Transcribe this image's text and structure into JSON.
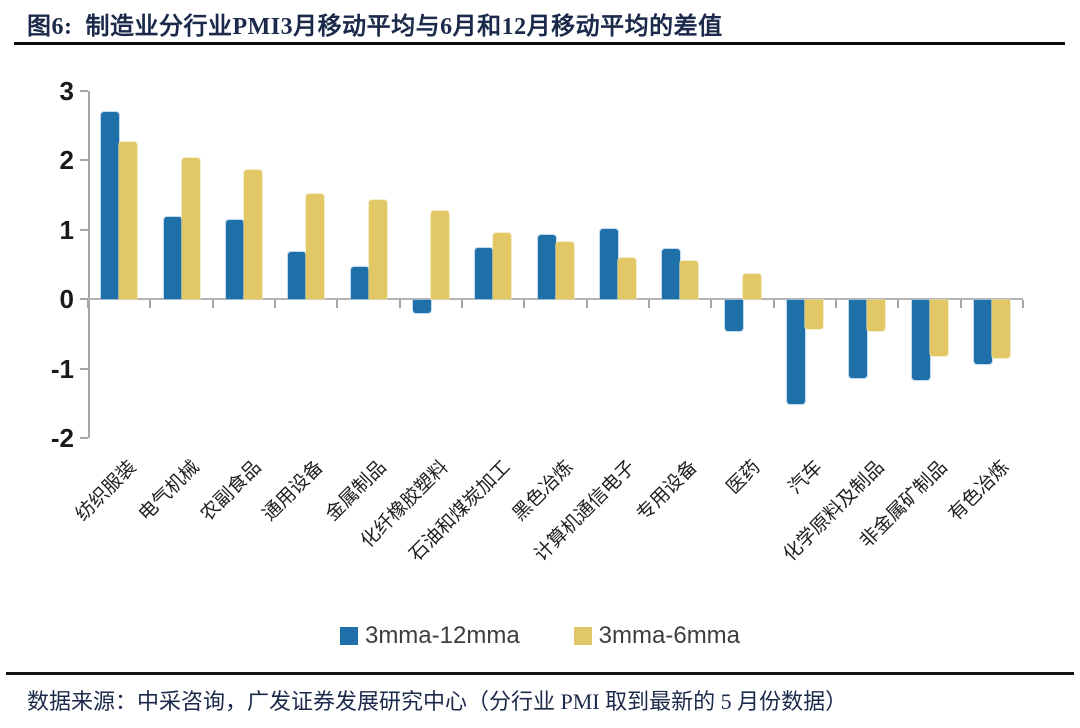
{
  "header": {
    "title": "图6:  制造业分行业PMI3月移动平均与6月和12月移动平均的差值"
  },
  "footer": {
    "source_text": "数据来源：中采咨询，广发证券发展研究中心（分行业 PMI 取到最新的 5 月份数据）"
  },
  "colors": {
    "title_navy": "#1b2a4a",
    "axis_gray": "#a6a6a6",
    "series_blue": "#1f6fa8",
    "series_yellow": "#e2c766"
  },
  "chart_data": {
    "type": "bar",
    "title": "制造业分行业PMI3月移动平均与6月和12月移动平均的差值",
    "categories": [
      "纺织服装",
      "电气机械",
      "农副食品",
      "通用设备",
      "金属制品",
      "化纤橡胶塑料",
      "石油和煤炭加工",
      "黑色冶炼",
      "计算机通信电子",
      "专用设备",
      "医药",
      "汽车",
      "化学原料及制品",
      "非金属矿制品",
      "有色冶炼"
    ],
    "series": [
      {
        "name": "3mma-12mma",
        "color": "#1f6fa8",
        "values": [
          2.7,
          1.19,
          1.14,
          0.68,
          0.46,
          -0.18,
          0.74,
          0.93,
          1.01,
          0.72,
          -0.45,
          -1.5,
          -1.12,
          -1.15,
          -0.92
        ]
      },
      {
        "name": "3mma-6mma",
        "color": "#e2c766",
        "values": [
          2.27,
          2.04,
          1.86,
          1.52,
          1.43,
          1.27,
          0.96,
          0.83,
          0.6,
          0.55,
          0.37,
          -0.42,
          -0.45,
          -0.8,
          -0.84
        ]
      }
    ],
    "xlabel": "",
    "ylabel": "",
    "ylim": [
      -2,
      3
    ],
    "ytick_step": 1,
    "yticks": [
      3,
      2,
      1,
      0,
      -1,
      -2
    ],
    "grid": false,
    "legend_position": "bottom-center"
  }
}
